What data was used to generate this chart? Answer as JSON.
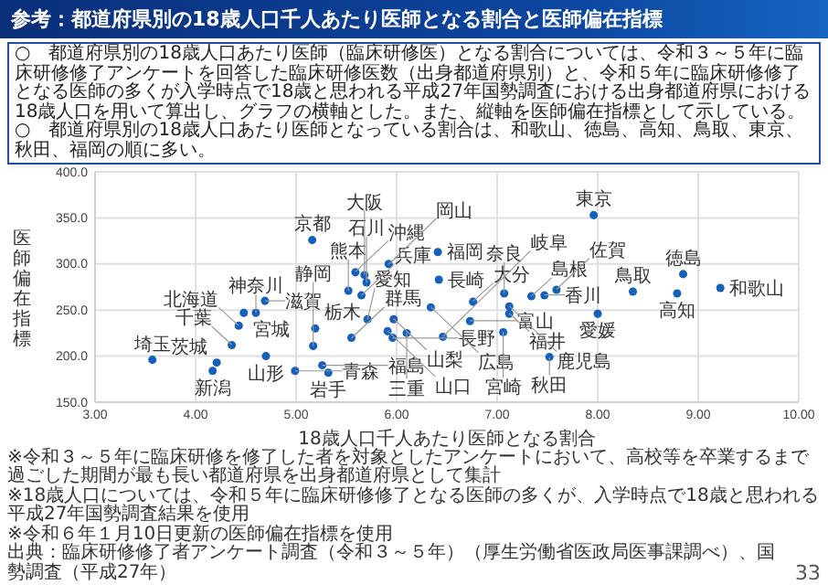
{
  "chart_data": {
    "type": "scatter",
    "title": "参考：都道府県別の18歳人口千人あたり医師となる割合と医師偏在指標",
    "xlabel": "18歳人口千人あたり医師となる割合",
    "ylabel": "医師偏在指標",
    "xlim": [
      3,
      10
    ],
    "xticks": [
      {
        "value": 3,
        "label": "3.00"
      },
      {
        "value": 4,
        "label": "4.00"
      },
      {
        "value": 5,
        "label": "5.00"
      },
      {
        "value": 6,
        "label": "6.00"
      },
      {
        "value": 7,
        "label": "7.00"
      },
      {
        "value": 8,
        "label": "8.00"
      },
      {
        "value": 9,
        "label": "9.00"
      },
      {
        "value": 10,
        "label": "10.00"
      }
    ],
    "ylim": [
      150,
      400
    ],
    "yticks": [
      {
        "value": 150,
        "label": "150.0"
      },
      {
        "value": 200,
        "label": "200.0"
      },
      {
        "value": 250,
        "label": "250.0"
      },
      {
        "value": 300,
        "label": "300.0"
      },
      {
        "value": 350,
        "label": "350.0"
      },
      {
        "value": 400,
        "label": "400.0"
      }
    ],
    "grid": true,
    "marker": "circle",
    "color": "#1560bd",
    "x": [
      3.57,
      4.21,
      4.17,
      4.36,
      4.43,
      4.48,
      4.6,
      4.69,
      4.7,
      5.16,
      4.99,
      5.26,
      5.32,
      5.17,
      5.19,
      5.55,
      5.52,
      5.65,
      5.7,
      5.59,
      5.68,
      5.92,
      5.71,
      5.97,
      5.91,
      5.96,
      6.1,
      7.96,
      6.41,
      6.42,
      6.34,
      6.76,
      6.73,
      6.46,
      7.07,
      7.34,
      7.47,
      7.59,
      7.12,
      7.12,
      7.06,
      7.52,
      8.0,
      8.35,
      8.79,
      8.85,
      9.22
    ],
    "values": [
      196,
      193,
      184,
      212,
      233,
      247,
      247,
      260,
      200,
      326,
      184,
      190,
      182,
      211,
      230,
      220,
      271,
      266,
      280,
      291,
      288,
      300,
      240,
      240,
      227,
      220,
      225,
      353,
      313,
      283,
      253,
      259,
      238,
      221,
      268,
      265,
      266,
      272,
      254,
      246,
      226,
      199,
      246,
      270,
      268,
      289,
      274
    ],
    "annotations": [
      {
        "text": "埼玉",
        "x": 3.57,
        "y": 196
      },
      {
        "text": "茨城",
        "x": 4.21,
        "y": 193
      },
      {
        "text": "新潟",
        "x": 4.17,
        "y": 184
      },
      {
        "text": "千葉",
        "x": 4.36,
        "y": 212.5
      },
      {
        "text": "北海道",
        "x": 4.43,
        "y": 233
      },
      {
        "text": "宮城",
        "x": 4.48,
        "y": 247
      },
      {
        "text": "神奈川",
        "x": 4.6,
        "y": 247
      },
      {
        "text": "滋賀",
        "x": 4.69,
        "y": 260
      },
      {
        "text": "山形",
        "x": 4.7,
        "y": 200
      },
      {
        "text": "京都",
        "x": 5.16,
        "y": 326.5
      },
      {
        "text": "青森",
        "x": 4.99,
        "y": 184
      },
      {
        "text": "福島",
        "x": 5.26,
        "y": 190
      },
      {
        "text": "岩手",
        "x": 5.32,
        "y": 182
      },
      {
        "text": "静岡",
        "x": 5.17,
        "y": 211
      },
      {
        "text": "栃木",
        "x": 5.19,
        "y": 230.5
      },
      {
        "text": "群馬",
        "x": 5.55,
        "y": 219.5
      },
      {
        "text": "熊本",
        "x": 5.52,
        "y": 271
      },
      {
        "text": "兵庫",
        "x": 5.65,
        "y": 266
      },
      {
        "text": "石川",
        "x": 5.7,
        "y": 280
      },
      {
        "text": "沖縄",
        "x": 5.59,
        "y": 291.5
      },
      {
        "text": "大阪",
        "x": 5.68,
        "y": 288.5
      },
      {
        "text": "岡山",
        "x": 5.92,
        "y": 299.5
      },
      {
        "text": "愛知",
        "x": 5.71,
        "y": 240
      },
      {
        "text": "山梨",
        "x": 5.97,
        "y": 240.5
      },
      {
        "text": "山口",
        "x": 5.91,
        "y": 227.5
      },
      {
        "text": "長野",
        "x": 5.96,
        "y": 219.5
      },
      {
        "text": "三重",
        "x": 6.1,
        "y": 225
      },
      {
        "text": "東京",
        "x": 7.96,
        "y": 353.5
      },
      {
        "text": "福岡",
        "x": 6.41,
        "y": 313.5
      },
      {
        "text": "長崎",
        "x": 6.42,
        "y": 283.5
      },
      {
        "text": "広島",
        "x": 6.34,
        "y": 253.5
      },
      {
        "text": "大分",
        "x": 6.76,
        "y": 259.5
      },
      {
        "text": "富山",
        "x": 6.73,
        "y": 238.5
      },
      {
        "text": "岐阜",
        "x": 6.46,
        "y": 221
      },
      {
        "text": "奈良",
        "x": 7.07,
        "y": 268.5
      },
      {
        "text": "島根",
        "x": 7.34,
        "y": 265
      },
      {
        "text": "香川",
        "x": 7.47,
        "y": 266.5
      },
      {
        "text": "佐賀",
        "x": 7.59,
        "y": 272.5
      },
      {
        "text": "鹿児島",
        "x": 7.12,
        "y": 254.5
      },
      {
        "text": "福井",
        "x": 7.12,
        "y": 246.5
      },
      {
        "text": "宮崎",
        "x": 7.06,
        "y": 226.5
      },
      {
        "text": "秋田",
        "x": 7.52,
        "y": 199
      },
      {
        "text": "愛媛",
        "x": 8.0,
        "y": 246
      },
      {
        "text": "鳥取",
        "x": 8.35,
        "y": 270
      },
      {
        "text": "高知",
        "x": 8.79,
        "y": 268
      },
      {
        "text": "徳島",
        "x": 8.85,
        "y": 289
      },
      {
        "text": "和歌山",
        "x": 9.22,
        "y": 274.5
      },
      "○　都道府県別の18歳人口あたり医師（臨床研修医）となる割合については、令和３～５年に臨床研修修了アンケートを回答した臨床研修医数（出身都道府県別）と、令和５年に臨床研修修了となる医師の多くが入学時点で18歳と思われる平成27年国勢調査における出身都道府県における18歳人口を用いて算出し、グラフの横軸とした。また、縦軸を医師偏在指標として示している。",
      "○　都道府県別の18歳人口あたり医師となっている割合は、和歌山、徳島、高知、鳥取、東京、秋田、福岡の順に多い。",
      "※令和３～５年に臨床研修を修了した者を対象としたアンケートにおいて、高校等を卒業するまで過ごした期間が最も長い都道府県を出身都道府県として集計",
      "※18歳人口については、令和５年に臨床研修修了となる医師の多くが、入学時点で18歳と思われる平成27年国勢調査結果を使用",
      "※令和６年１月10日更新の医師偏在指標を使用",
      "出典：臨床研修修了者アンケート調査（令和３～５年）（厚生労働省医政局医事課調べ）、国勢調査（平成27年）",
      "33"
    ]
  }
}
